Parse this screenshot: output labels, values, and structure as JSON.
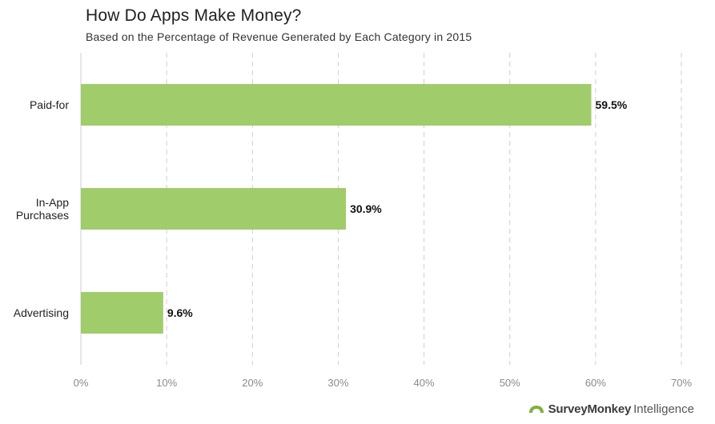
{
  "header": {
    "title": "How Do Apps Make Money?",
    "subtitle": "Based on the Percentage of Revenue Generated by Each Category in 2015"
  },
  "logo": {
    "brand": "SurveyMonkey",
    "suffix": "Intelligence",
    "brand_color": "#7fb33a"
  },
  "colors": {
    "bar": "#a1cc6b",
    "grid": "#cfcfcf"
  },
  "chart_data": {
    "type": "bar",
    "orientation": "horizontal",
    "title": "How Do Apps Make Money?",
    "subtitle": "Based on the Percentage of Revenue Generated by Each Category in 2015",
    "categories": [
      [
        "Paid-for"
      ],
      [
        "In-App",
        "Purchases"
      ],
      [
        "Advertising"
      ]
    ],
    "values": [
      59.5,
      30.9,
      9.6
    ],
    "data_labels": [
      "59.5%",
      "30.9%",
      "9.6%"
    ],
    "xlim": [
      0,
      70
    ],
    "ticks": [
      0,
      10,
      20,
      30,
      40,
      50,
      60,
      70
    ],
    "tick_labels": [
      "0%",
      "10%",
      "20%",
      "30%",
      "40%",
      "50%",
      "60%",
      "70%"
    ],
    "grid": "vertical-dashed",
    "legend": "none"
  }
}
